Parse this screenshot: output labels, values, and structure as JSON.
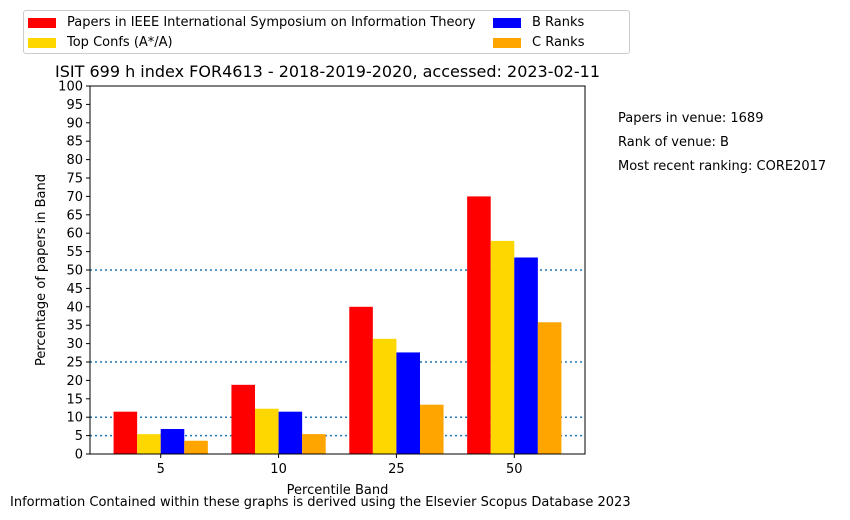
{
  "colors": {
    "series": [
      "#ff0000",
      "#ffd700",
      "#0000ff",
      "#ffa500"
    ],
    "reference_lines": "#1f77b4"
  },
  "side_notes": {
    "papers_in_venue": "Papers in venue: 1689",
    "rank_of_venue": "Rank of venue: B",
    "most_recent_ranking": "Most recent ranking: CORE2017"
  },
  "footer": "Information Contained within these graphs is derived using the Elsevier Scopus Database 2023",
  "chart_data": {
    "type": "bar",
    "title": "ISIT 699 h index FOR4613 - 2018-2019-2020, accessed: 2023-02-11",
    "xlabel": "Percentile Band",
    "ylabel": "Percentage of papers in Band",
    "categories": [
      "5",
      "10",
      "25",
      "50"
    ],
    "ylim": [
      0,
      100
    ],
    "yticks": [
      "0",
      "5",
      "10",
      "15",
      "20",
      "25",
      "30",
      "35",
      "40",
      "45",
      "50",
      "55",
      "60",
      "65",
      "70",
      "75",
      "80",
      "85",
      "90",
      "95",
      "100"
    ],
    "reference_lines": [
      5,
      10,
      25,
      50
    ],
    "legend_position": "top",
    "series": [
      {
        "name": "Papers in IEEE International Symposium on Information Theory",
        "values": [
          11.5,
          18.8,
          40.0,
          70.0
        ]
      },
      {
        "name": "Top Confs (A*/A)",
        "values": [
          5.4,
          12.3,
          31.3,
          57.9
        ]
      },
      {
        "name": "B Ranks",
        "values": [
          6.8,
          11.5,
          27.6,
          53.4
        ]
      },
      {
        "name": "C Ranks",
        "values": [
          3.6,
          5.4,
          13.4,
          35.8
        ]
      }
    ]
  }
}
